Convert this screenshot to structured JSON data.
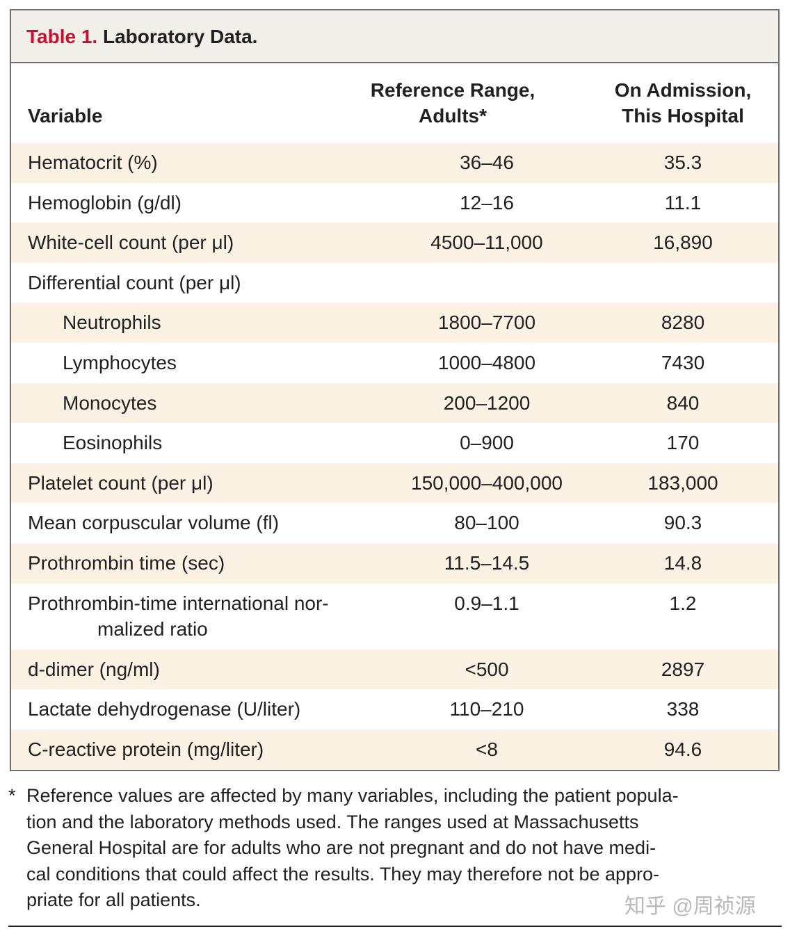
{
  "table": {
    "title_number": "Table 1.",
    "title_text": "Laboratory Data.",
    "headers": {
      "variable": "Variable",
      "reference_line1": "Reference Range,",
      "reference_line2": "Adults*",
      "admission_line1": "On Admission,",
      "admission_line2": "This Hospital"
    },
    "rows": [
      {
        "variable": "Hematocrit (%)",
        "reference": "36–46",
        "admission": "35.3"
      },
      {
        "variable": "Hemoglobin (g/dl)",
        "reference": "12–16",
        "admission": "11.1"
      },
      {
        "variable": "White-cell count (per μl)",
        "reference": "4500–11,000",
        "admission": "16,890"
      },
      {
        "variable": "Differential count (per μl)",
        "reference": "",
        "admission": ""
      },
      {
        "variable": "Neutrophils",
        "reference": "1800–7700",
        "admission": "8280"
      },
      {
        "variable": "Lymphocytes",
        "reference": "1000–4800",
        "admission": "7430"
      },
      {
        "variable": "Monocytes",
        "reference": "200–1200",
        "admission": "840"
      },
      {
        "variable": "Eosinophils",
        "reference": "0–900",
        "admission": "170"
      },
      {
        "variable": "Platelet count (per μl)",
        "reference": "150,000–400,000",
        "admission": "183,000"
      },
      {
        "variable": "Mean corpuscular volume (fl)",
        "reference": "80–100",
        "admission": "90.3"
      },
      {
        "variable": "Prothrombin time (sec)",
        "reference": "11.5–14.5",
        "admission": "14.8"
      },
      {
        "variable": "Prothrombin-time international nor-",
        "variable_line2": "malized ratio",
        "reference": "0.9–1.1",
        "admission": "1.2"
      },
      {
        "variable": "d-dimer (ng/ml)",
        "reference": "<500",
        "admission": "2897"
      },
      {
        "variable": "Lactate dehydrogenase (U/liter)",
        "reference": "110–210",
        "admission": "338"
      },
      {
        "variable": "C-reactive protein (mg/liter)",
        "reference": "<8",
        "admission": "94.6"
      }
    ]
  },
  "footnote": {
    "mark": "*",
    "lines": [
      "Reference values are affected by many variables, including the patient popula-",
      "tion and the laboratory methods used. The ranges used at Massachusetts",
      "General Hospital are for adults who are not pregnant and do not have medi-",
      "cal conditions that could affect the results. They may therefore not be appro-",
      "priate for all patients."
    ]
  },
  "watermark": "知乎 @周祯源"
}
